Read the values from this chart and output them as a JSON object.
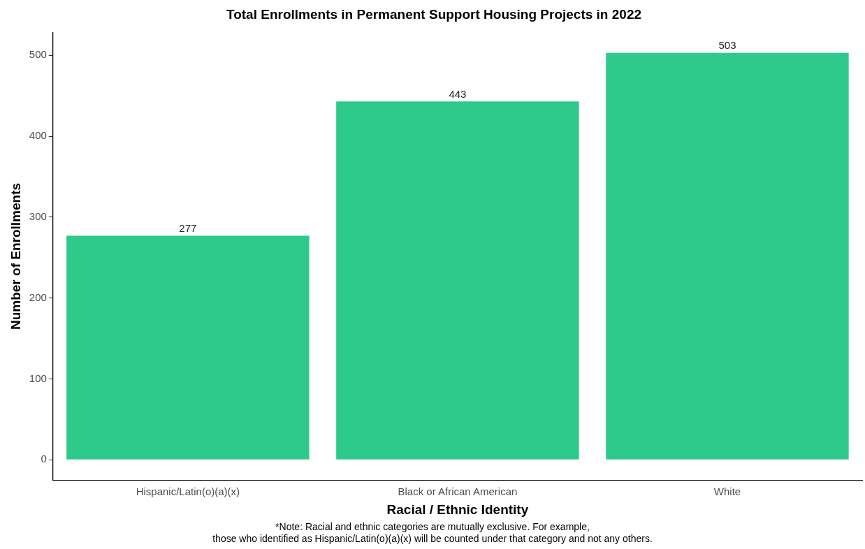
{
  "chart_data": {
    "type": "bar",
    "title": "Total Enrollments in Permanent Support Housing Projects in 2022",
    "xlabel": "Racial / Ethnic Identity",
    "ylabel": "Number of Enrollments",
    "categories": [
      "Hispanic/Latin(o)(a)(x)",
      "Black or African American",
      "White"
    ],
    "values": [
      277,
      443,
      503
    ],
    "color": "#2eca8b",
    "ylim": [
      -25,
      528
    ],
    "yticks": [
      0,
      100,
      200,
      300,
      400,
      500
    ],
    "grid": false,
    "legend": false,
    "data_labels": true,
    "annotations": [
      "*Note: Racial and ethnic categories are mutually exclusive. For example,",
      "those who identified as Hispanic/Latin(o)(a)(x) will be counted under that category and not any others."
    ]
  }
}
